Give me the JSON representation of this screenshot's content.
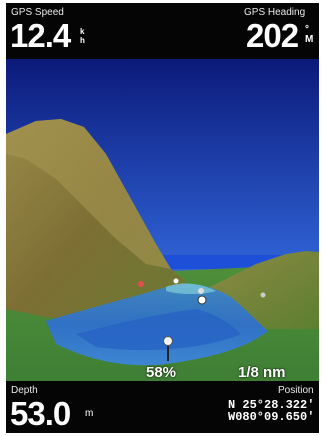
{
  "header": {
    "gps_speed_label": "GPS Speed",
    "gps_speed_value": "12.4",
    "gps_speed_unit_top": "k",
    "gps_speed_unit_bottom": "h",
    "gps_heading_label": "GPS Heading",
    "gps_heading_value": "202",
    "gps_heading_unit_top": "°",
    "gps_heading_unit_bottom": "M"
  },
  "map": {
    "zoom_percent": "58%",
    "scale": "1/8 nm"
  },
  "footer": {
    "depth_label": "Depth",
    "depth_value": "53.0",
    "depth_unit": "m",
    "position_label": "Position",
    "lat_line": "N 25°28.322'",
    "lon_line": "W080°09.650'"
  },
  "colors": {
    "sky_top": "#0b1a7a",
    "sky_bottom": "#4c8fe3",
    "terrain": "#8a7a3a",
    "water": "#2e6fd0"
  }
}
